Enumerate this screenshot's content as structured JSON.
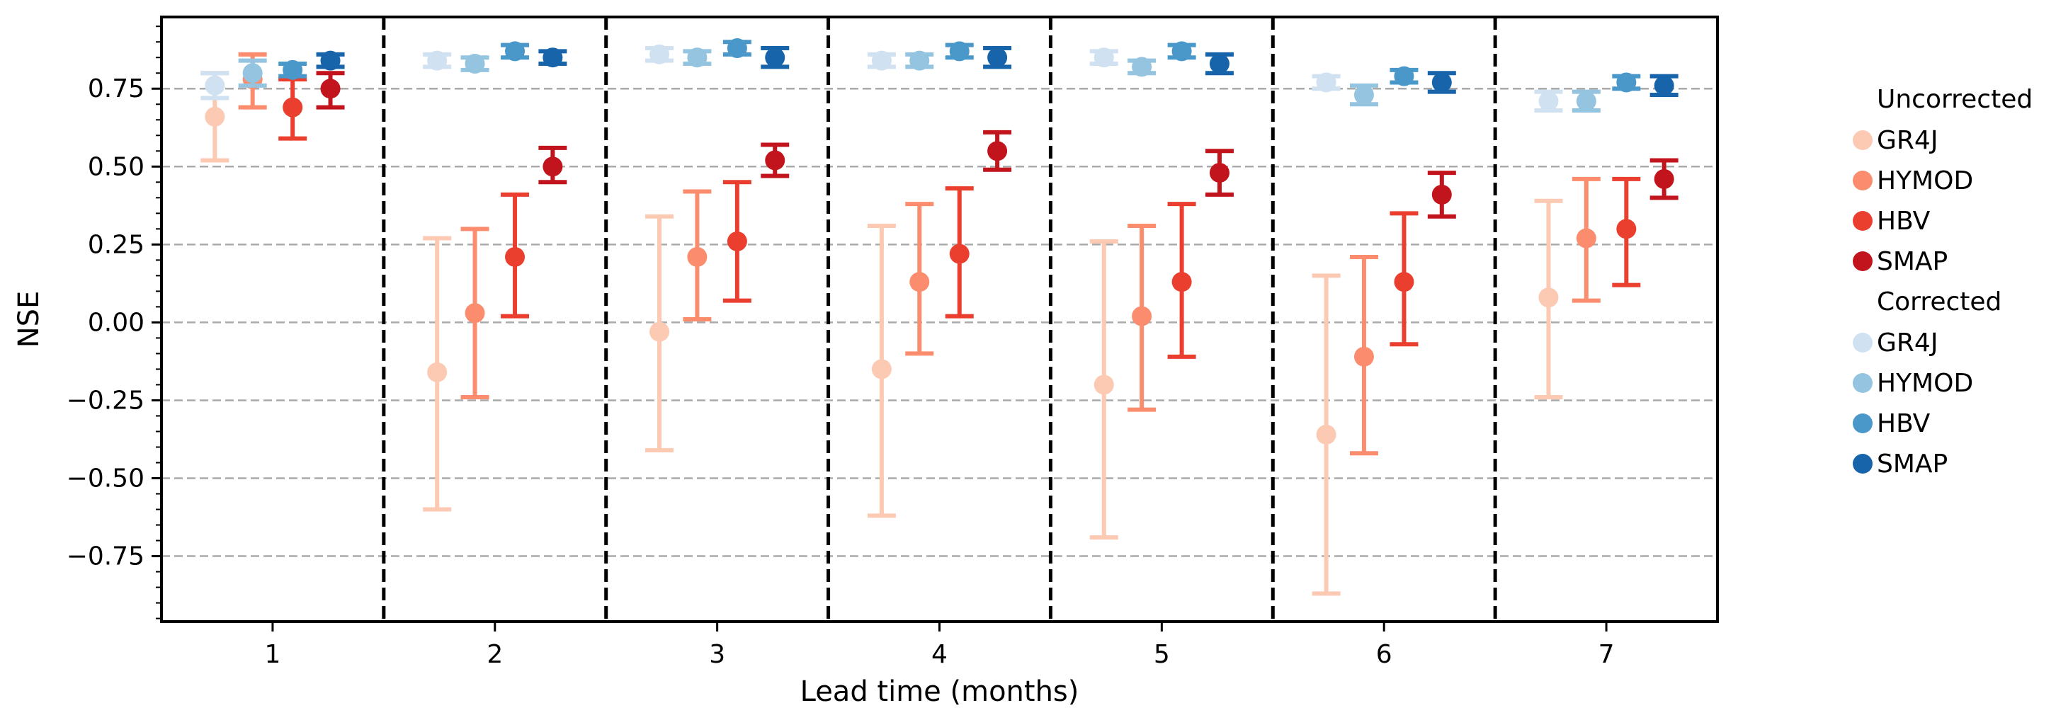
{
  "chart_data": {
    "type": "scatter",
    "subtype": "point-with-error-bars",
    "xlabel": "Lead time (months)",
    "ylabel": "NSE",
    "categories": [
      "1",
      "2",
      "3",
      "4",
      "5",
      "6",
      "7"
    ],
    "yticks": [
      "−0.75",
      "−0.50",
      "−0.25",
      "0.00",
      "0.25",
      "0.50",
      "0.75"
    ],
    "ytick_values": [
      -0.75,
      -0.5,
      -0.25,
      0.0,
      0.25,
      0.5,
      0.75
    ],
    "ylim": [
      -0.96,
      0.98
    ],
    "grid": "horizontal dashed",
    "legend_position": "right",
    "legend_groups": [
      {
        "title": "Uncorrected",
        "entries": [
          "GR4J",
          "HYMOD",
          "HBV",
          "SMAP"
        ]
      },
      {
        "title": "Corrected",
        "entries": [
          "GR4J",
          "HYMOD",
          "HBV",
          "SMAP"
        ]
      }
    ],
    "series": [
      {
        "name": "GR4J",
        "group": "Uncorrected",
        "color": "#fcc9b3",
        "values": [
          0.66,
          -0.16,
          -0.03,
          -0.15,
          -0.2,
          -0.36,
          0.08
        ],
        "lower": [
          0.52,
          -0.6,
          -0.41,
          -0.62,
          -0.69,
          -0.87,
          -0.24
        ],
        "upper": [
          0.8,
          0.27,
          0.34,
          0.31,
          0.26,
          0.15,
          0.39
        ]
      },
      {
        "name": "HYMOD",
        "group": "Uncorrected",
        "color": "#fb8d6e",
        "values": [
          0.78,
          0.03,
          0.21,
          0.13,
          0.02,
          -0.11,
          0.27
        ],
        "lower": [
          0.69,
          -0.24,
          0.01,
          -0.1,
          -0.28,
          -0.42,
          0.07
        ],
        "upper": [
          0.86,
          0.3,
          0.42,
          0.38,
          0.31,
          0.21,
          0.46
        ]
      },
      {
        "name": "HBV",
        "group": "Uncorrected",
        "color": "#ea3e2f",
        "values": [
          0.69,
          0.21,
          0.26,
          0.22,
          0.13,
          0.13,
          0.3
        ],
        "lower": [
          0.59,
          0.02,
          0.07,
          0.02,
          -0.11,
          -0.07,
          0.12
        ],
        "upper": [
          0.78,
          0.41,
          0.45,
          0.43,
          0.38,
          0.35,
          0.46
        ]
      },
      {
        "name": "SMAP",
        "group": "Uncorrected",
        "color": "#c1141c",
        "values": [
          0.75,
          0.5,
          0.52,
          0.55,
          0.48,
          0.41,
          0.46
        ],
        "lower": [
          0.69,
          0.45,
          0.47,
          0.49,
          0.41,
          0.34,
          0.4
        ],
        "upper": [
          0.8,
          0.56,
          0.57,
          0.61,
          0.55,
          0.48,
          0.52
        ]
      },
      {
        "name": "GR4J",
        "group": "Corrected",
        "color": "#d0e1f2",
        "values": [
          0.76,
          0.84,
          0.86,
          0.84,
          0.85,
          0.77,
          0.71
        ],
        "lower": [
          0.72,
          0.82,
          0.84,
          0.82,
          0.83,
          0.75,
          0.68
        ],
        "upper": [
          0.8,
          0.86,
          0.88,
          0.86,
          0.87,
          0.79,
          0.74
        ]
      },
      {
        "name": "HYMOD",
        "group": "Corrected",
        "color": "#94c4df",
        "values": [
          0.8,
          0.83,
          0.85,
          0.84,
          0.82,
          0.73,
          0.71
        ],
        "lower": [
          0.76,
          0.81,
          0.83,
          0.82,
          0.8,
          0.7,
          0.68
        ],
        "upper": [
          0.84,
          0.85,
          0.87,
          0.86,
          0.84,
          0.76,
          0.74
        ]
      },
      {
        "name": "HBV",
        "group": "Corrected",
        "color": "#4a98c9",
        "values": [
          0.81,
          0.87,
          0.88,
          0.87,
          0.87,
          0.79,
          0.77
        ],
        "lower": [
          0.79,
          0.85,
          0.86,
          0.85,
          0.85,
          0.77,
          0.75
        ],
        "upper": [
          0.83,
          0.89,
          0.9,
          0.89,
          0.89,
          0.81,
          0.79
        ]
      },
      {
        "name": "SMAP",
        "group": "Corrected",
        "color": "#1764ab",
        "values": [
          0.84,
          0.85,
          0.85,
          0.85,
          0.83,
          0.77,
          0.76
        ],
        "lower": [
          0.82,
          0.83,
          0.82,
          0.82,
          0.8,
          0.74,
          0.73
        ],
        "upper": [
          0.86,
          0.87,
          0.88,
          0.88,
          0.86,
          0.8,
          0.79
        ]
      }
    ]
  }
}
